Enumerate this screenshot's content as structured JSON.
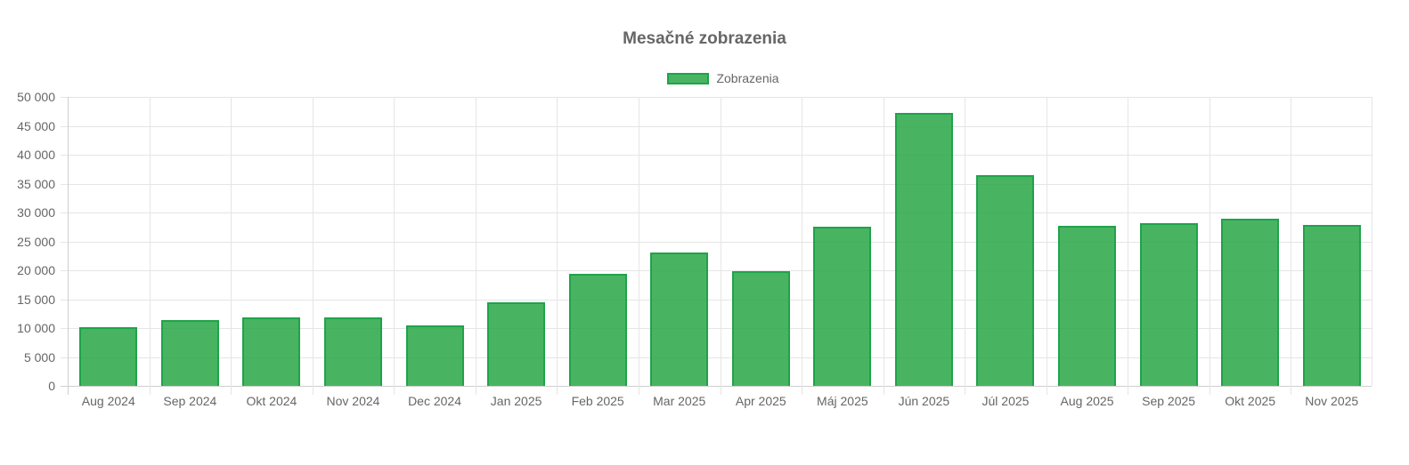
{
  "chart_data": {
    "type": "bar",
    "title": "Mesačné zobrazenia",
    "xlabel": "",
    "ylabel": "",
    "ylim": [
      0,
      50000
    ],
    "yticks": [
      0,
      5000,
      10000,
      15000,
      20000,
      25000,
      30000,
      35000,
      40000,
      45000,
      50000
    ],
    "ytick_labels": [
      "0",
      "5 000",
      "10 000",
      "15 000",
      "20 000",
      "25 000",
      "30 000",
      "35 000",
      "40 000",
      "45 000",
      "50 000"
    ],
    "grid": true,
    "legend_position": "top",
    "categories": [
      "Aug 2024",
      "Sep 2024",
      "Okt 2024",
      "Nov 2024",
      "Dec 2024",
      "Jan 2025",
      "Feb 2025",
      "Mar 2025",
      "Apr 2025",
      "Máj 2025",
      "Jún 2025",
      "Júl 2025",
      "Aug 2025",
      "Sep 2025",
      "Okt 2025",
      "Nov 2025"
    ],
    "series": [
      {
        "name": "Zobrazenia",
        "color": "#28a745",
        "border_color": "#1fa34a",
        "values": [
          10200,
          11400,
          11900,
          11900,
          10500,
          14500,
          19400,
          23100,
          19900,
          27600,
          47300,
          36500,
          27700,
          28100,
          28900,
          27800
        ]
      }
    ]
  },
  "title": "Mesačné zobrazenia",
  "legend": {
    "label": "Zobrazenia"
  }
}
